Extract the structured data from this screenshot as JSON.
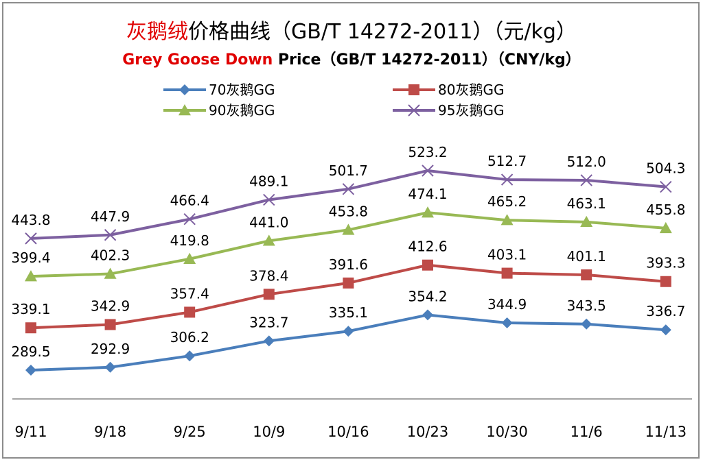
{
  "chart_data": {
    "type": "line",
    "title": {
      "highlight": "灰鹅绒",
      "rest": "价格曲线（GB/T 14272-2011）（元/kg）"
    },
    "subtitle": {
      "highlight": "Grey Goose Down",
      "rest": " Price（GB/T 14272-2011）（CNY/kg）"
    },
    "categories": [
      "9/11",
      "9/18",
      "9/25",
      "10/9",
      "10/16",
      "10/23",
      "10/30",
      "11/6",
      "11/13"
    ],
    "series": [
      {
        "name": "70灰鹅GG",
        "color": "#4a7ebb",
        "marker": "diamond",
        "values": [
          289.5,
          292.9,
          306.2,
          323.7,
          335.1,
          354.2,
          344.9,
          343.5,
          336.7
        ],
        "labels": [
          "289.5",
          "292.9",
          "306.2",
          "323.7",
          "335.1",
          "354.2",
          "344.9",
          "343.5",
          "336.7"
        ]
      },
      {
        "name": "80灰鹅GG",
        "color": "#be4b48",
        "marker": "square",
        "values": [
          339.1,
          342.9,
          357.4,
          378.4,
          391.6,
          412.6,
          403.1,
          401.1,
          393.3
        ],
        "labels": [
          "339.1",
          "342.9",
          "357.4",
          "378.4",
          "391.6",
          "412.6",
          "403.1",
          "401.1",
          "393.3"
        ]
      },
      {
        "name": "90灰鹅GG",
        "color": "#98b954",
        "marker": "triangle",
        "values": [
          399.4,
          402.3,
          419.8,
          441.0,
          453.8,
          474.1,
          465.2,
          463.1,
          455.8
        ],
        "labels": [
          "399.4",
          "402.3",
          "419.8",
          "441.0",
          "453.8",
          "474.1",
          "465.2",
          "463.1",
          "455.8"
        ]
      },
      {
        "name": "95灰鹅GG",
        "color": "#7d60a0",
        "marker": "x",
        "values": [
          443.8,
          447.9,
          466.4,
          489.1,
          501.7,
          523.2,
          512.7,
          512.0,
          504.3
        ],
        "labels": [
          "443.8",
          "447.9",
          "466.4",
          "489.1",
          "501.7",
          "523.2",
          "512.7",
          "512.0",
          "504.3"
        ]
      }
    ],
    "ylim": [
      270,
      540
    ],
    "grid": false,
    "legend_placement": "top",
    "colors": {
      "title_highlight": "#e00000",
      "frame": "#8c8c8c",
      "axis": "#868686"
    }
  }
}
